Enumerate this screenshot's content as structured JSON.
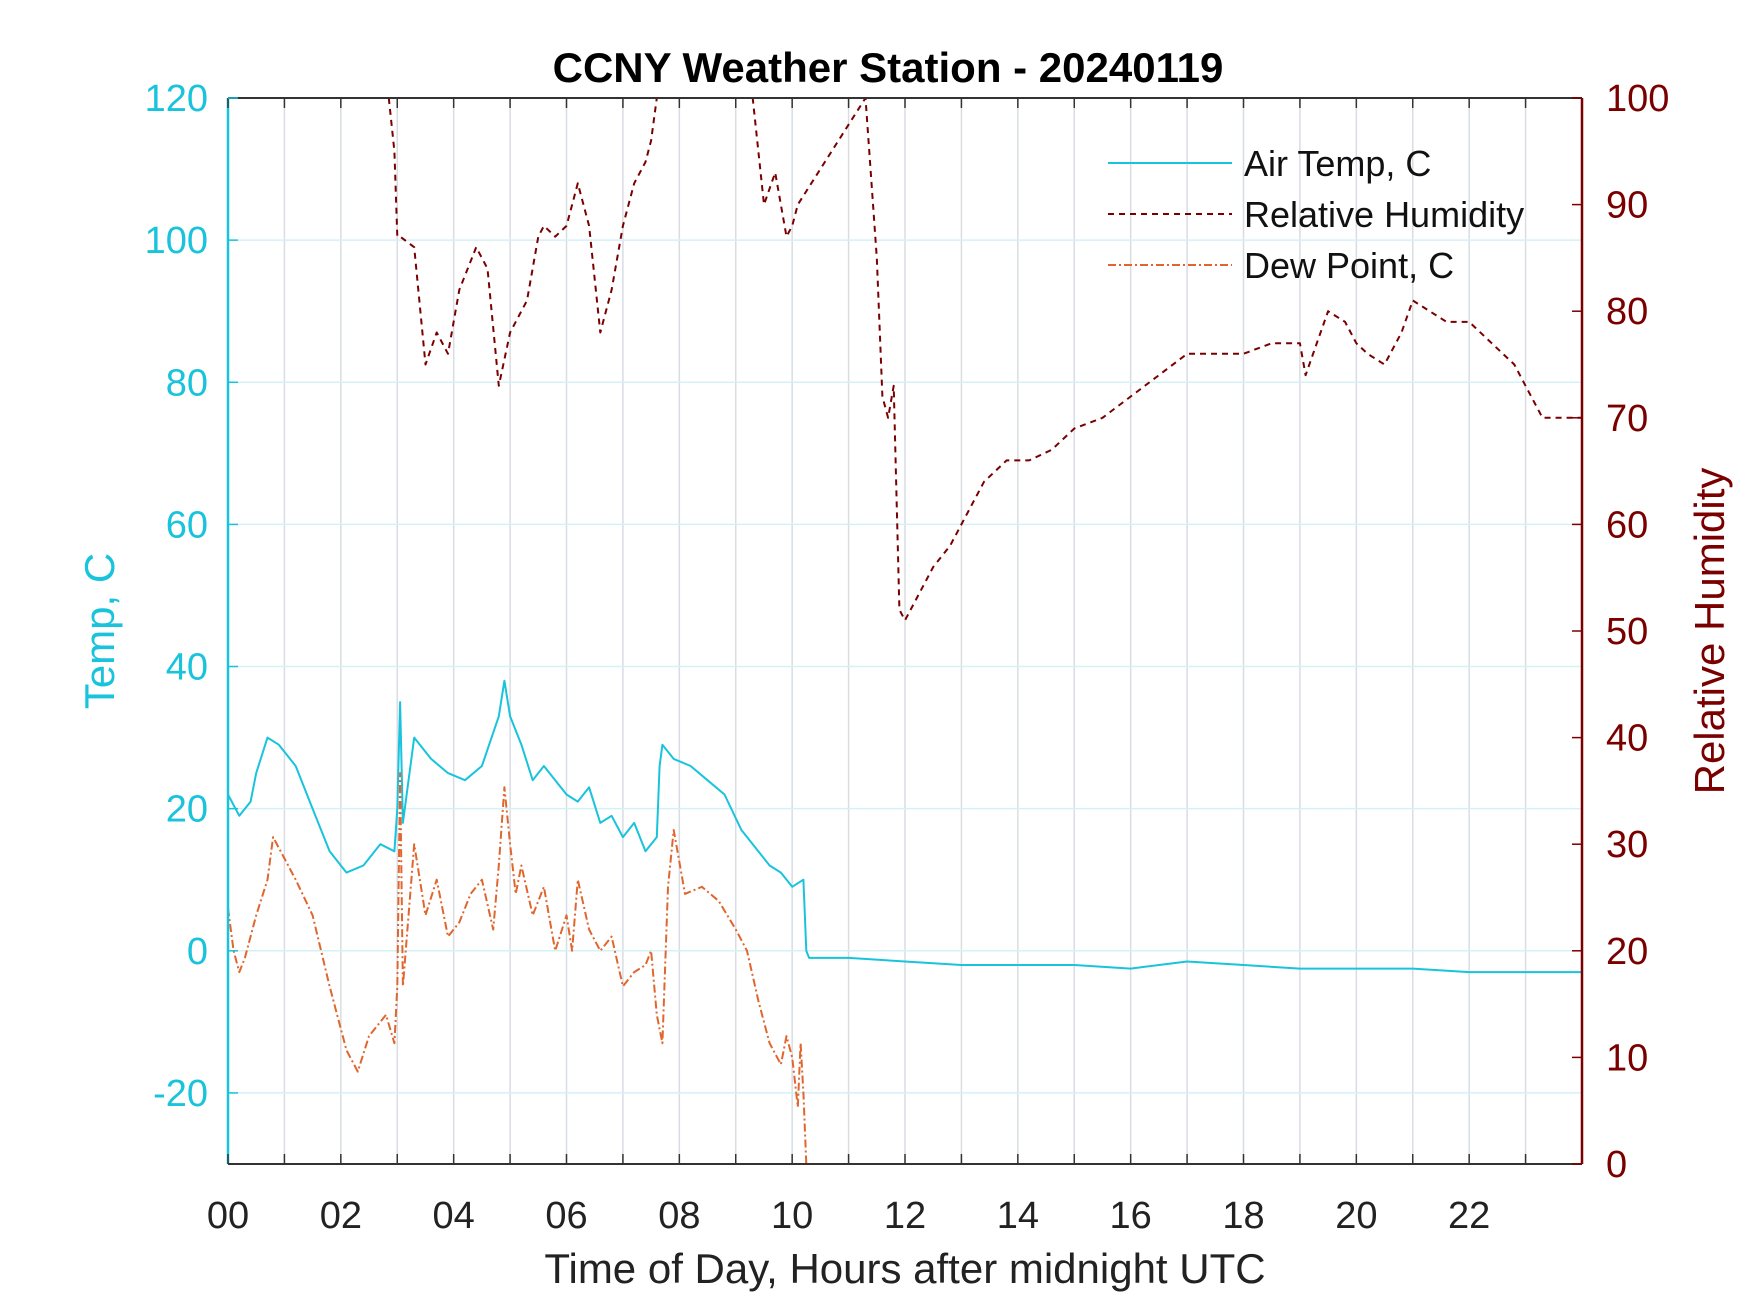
{
  "chart_data": {
    "type": "line",
    "title": "CCNY Weather Station - 20240119",
    "xlabel": "Time of Day, Hours after midnight UTC",
    "ylabel_left": "Temp, C",
    "ylabel_right": "Relative Humidity",
    "xlim": [
      0,
      24
    ],
    "ylim_left": [
      -30,
      120
    ],
    "ylim_right": [
      0,
      100
    ],
    "x_ticks": [
      "00",
      "02",
      "04",
      "06",
      "08",
      "10",
      "12",
      "14",
      "16",
      "18",
      "20",
      "22"
    ],
    "y_left_ticks": [
      "-20",
      "0",
      "20",
      "40",
      "60",
      "80",
      "100",
      "120"
    ],
    "y_right_ticks": [
      "0",
      "10",
      "20",
      "30",
      "40",
      "50",
      "60",
      "70",
      "80",
      "90",
      "100"
    ],
    "grid": true,
    "legend_position": "top-right",
    "colors": {
      "air_temp": "#19c3dc",
      "relative_humidity": "#7a0000",
      "dew_point": "#e0662e"
    },
    "series": [
      {
        "name": "Air Temp, C",
        "axis": "left",
        "style": "solid",
        "x": [
          0,
          0.2,
          0.4,
          0.5,
          0.7,
          0.9,
          1.2,
          1.5,
          1.8,
          2.1,
          2.4,
          2.7,
          2.95,
          3.0,
          3.05,
          3.1,
          3.3,
          3.6,
          3.9,
          4.2,
          4.5,
          4.8,
          4.9,
          5.0,
          5.2,
          5.4,
          5.6,
          5.8,
          6.0,
          6.2,
          6.4,
          6.6,
          6.8,
          7.0,
          7.2,
          7.4,
          7.6,
          7.65,
          7.7,
          7.9,
          8.2,
          8.5,
          8.8,
          9.1,
          9.4,
          9.6,
          9.8,
          10.0,
          10.2,
          10.25,
          10.3,
          11.0,
          12.0,
          13.0,
          14.0,
          15.0,
          16.0,
          17.0,
          18.0,
          19.0,
          20.0,
          21.0,
          22.0,
          23.0,
          24.0
        ],
        "values": [
          22,
          19,
          21,
          25,
          30,
          29,
          26,
          20,
          14,
          11,
          12,
          15,
          14,
          20,
          35,
          18,
          30,
          27,
          25,
          24,
          26,
          33,
          38,
          33,
          29,
          24,
          26,
          24,
          22,
          21,
          23,
          18,
          19,
          16,
          18,
          14,
          16,
          26,
          29,
          27,
          26,
          24,
          22,
          17,
          14,
          12,
          11,
          9,
          10,
          0,
          -1,
          -1,
          -1.5,
          -2,
          -2,
          -2,
          -2.5,
          -1.5,
          -2,
          -2.5,
          -2.5,
          -2.5,
          -3,
          -3,
          -3
        ]
      },
      {
        "name": "Relative Humidity",
        "axis": "right",
        "style": "dashed",
        "x": [
          2.85,
          2.95,
          3.0,
          3.05,
          3.3,
          3.5,
          3.7,
          3.9,
          4.1,
          4.4,
          4.6,
          4.8,
          5.0,
          5.3,
          5.5,
          5.6,
          5.8,
          6.0,
          6.2,
          6.4,
          6.6,
          6.8,
          7.0,
          7.2,
          7.4,
          7.5,
          7.6,
          9.3,
          9.5,
          9.7,
          9.9,
          10.0,
          10.1,
          11.3,
          11.5,
          11.6,
          11.7,
          11.8,
          11.9,
          12.0,
          12.2,
          12.5,
          12.8,
          13.0,
          13.4,
          13.8,
          14.2,
          14.6,
          15.0,
          15.5,
          16.0,
          16.5,
          17.0,
          17.5,
          18.0,
          18.5,
          19.0,
          19.1,
          19.3,
          19.5,
          19.8,
          20.0,
          20.2,
          20.5,
          20.8,
          21.0,
          21.3,
          21.6,
          22.0,
          22.4,
          22.8,
          23.1,
          23.3,
          23.6,
          24.0
        ],
        "values": [
          100,
          95,
          87,
          87,
          86,
          75,
          78,
          76,
          82,
          86,
          84,
          73,
          78,
          81,
          87,
          88,
          87,
          88,
          92,
          88,
          78,
          82,
          88,
          92,
          94,
          96,
          100,
          100,
          90,
          93,
          87,
          88,
          90,
          100,
          85,
          72,
          70,
          73,
          52,
          51,
          53,
          56,
          58,
          60,
          64,
          66,
          66,
          67,
          69,
          70,
          72,
          74,
          76,
          76,
          76,
          77,
          77,
          74,
          77,
          80,
          79,
          77,
          76,
          75,
          78,
          81,
          80,
          79,
          79,
          77,
          75,
          72,
          70,
          70,
          70
        ]
      },
      {
        "name": "Dew Point, C",
        "axis": "left",
        "style": "dashdot",
        "x": [
          0,
          0.1,
          0.2,
          0.3,
          0.5,
          0.7,
          0.8,
          1.0,
          1.2,
          1.5,
          1.8,
          2.1,
          2.3,
          2.5,
          2.8,
          2.95,
          3.0,
          3.05,
          3.1,
          3.3,
          3.5,
          3.7,
          3.9,
          4.1,
          4.3,
          4.5,
          4.7,
          4.8,
          4.9,
          5.0,
          5.1,
          5.2,
          5.4,
          5.6,
          5.8,
          6.0,
          6.1,
          6.2,
          6.4,
          6.6,
          6.8,
          7.0,
          7.2,
          7.4,
          7.5,
          7.6,
          7.7,
          7.8,
          7.9,
          8.1,
          8.4,
          8.7,
          9.0,
          9.2,
          9.4,
          9.6,
          9.8,
          9.9,
          10.0,
          10.1,
          10.15,
          10.2,
          10.25,
          10.3
        ],
        "values": [
          6,
          0,
          -3,
          -1,
          5,
          10,
          16,
          13,
          10,
          5,
          -5,
          -14,
          -17,
          -12,
          -9,
          -13,
          -5,
          25,
          -5,
          15,
          5,
          10,
          2,
          4,
          8,
          10,
          3,
          12,
          23,
          15,
          8,
          12,
          5,
          9,
          0,
          5,
          0,
          10,
          3,
          0,
          2,
          -5,
          -3,
          -2,
          0,
          -9,
          -13,
          9,
          17,
          8,
          9,
          7,
          3,
          0,
          -7,
          -13,
          -16,
          -12,
          -15,
          -22,
          -13,
          -20,
          -30,
          -30
        ]
      }
    ]
  }
}
